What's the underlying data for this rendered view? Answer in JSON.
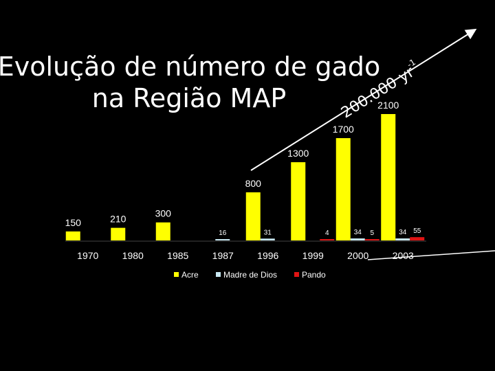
{
  "chart_data": {
    "type": "bar",
    "title": [
      "Evolução de número de gado",
      "na Região MAP"
    ],
    "annotation": {
      "text": "200.000 yr",
      "superscript": "-1"
    },
    "categories": [
      "1970",
      "1980",
      "1985",
      "1987",
      "1996",
      "1999",
      "2000",
      "2003"
    ],
    "series": [
      {
        "name": "Acre",
        "color": "#ffff00",
        "values": [
          150,
          210,
          300,
          null,
          800,
          1300,
          1700,
          2100
        ]
      },
      {
        "name": "Madre de Dios",
        "color": "#c8e8f2",
        "values": [
          null,
          null,
          null,
          16,
          31,
          null,
          34,
          34
        ]
      },
      {
        "name": "Pando",
        "color": "#e01414",
        "values": [
          null,
          null,
          null,
          null,
          null,
          4,
          5,
          55
        ]
      }
    ]
  }
}
